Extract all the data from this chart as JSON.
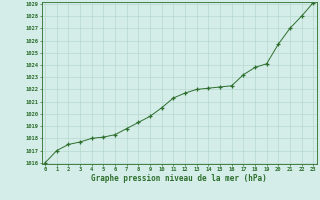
{
  "x": [
    0,
    1,
    2,
    3,
    4,
    5,
    6,
    7,
    8,
    9,
    10,
    11,
    12,
    13,
    14,
    15,
    16,
    17,
    18,
    19,
    20,
    21,
    22,
    23
  ],
  "y": [
    1016.0,
    1017.0,
    1017.5,
    1017.7,
    1018.0,
    1018.1,
    1018.3,
    1018.8,
    1019.3,
    1019.8,
    1020.5,
    1021.3,
    1021.7,
    1022.0,
    1022.1,
    1022.2,
    1022.3,
    1023.2,
    1023.8,
    1024.1,
    1025.7,
    1027.0,
    1028.0,
    1029.1
  ],
  "xlabel": "Graphe pression niveau de la mer (hPa)",
  "ylim_min": 1016,
  "ylim_max": 1029,
  "xlim_min": 0,
  "xlim_max": 23,
  "yticks": [
    1016,
    1017,
    1018,
    1019,
    1020,
    1021,
    1022,
    1023,
    1024,
    1025,
    1026,
    1027,
    1028,
    1029
  ],
  "xticks": [
    0,
    1,
    2,
    3,
    4,
    5,
    6,
    7,
    8,
    9,
    10,
    11,
    12,
    13,
    14,
    15,
    16,
    17,
    18,
    19,
    20,
    21,
    22,
    23
  ],
  "line_color": "#2d6e2d",
  "marker_color": "#2d6e2d",
  "bg_color": "#d4ede8",
  "grid_color": "#b0d4c8",
  "xlabel_color": "#2d6e2d",
  "tick_color": "#2d6e2d",
  "spine_color": "#2d6e2d",
  "tick_fontsize": 4.0,
  "xlabel_fontsize": 5.5
}
